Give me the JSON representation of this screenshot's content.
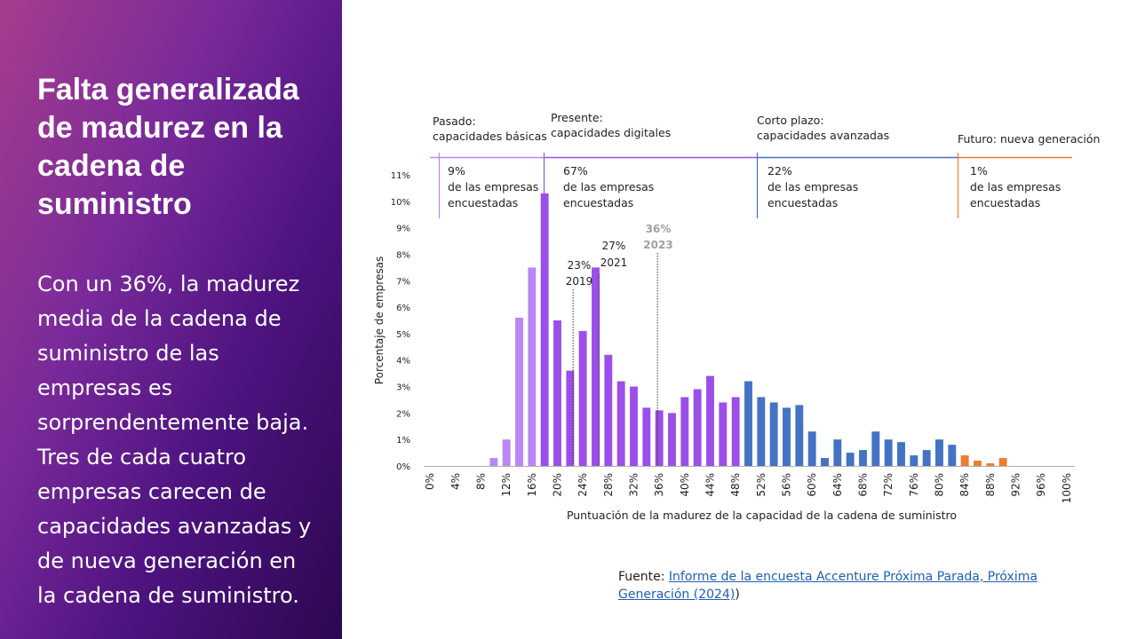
{
  "slide": {
    "title": "Falta generalizada de madurez en la cadena de suministro",
    "body": "Con un 36%, la madurez media de la cadena de suministro de las empresas es sorprendentemente baja. Tres de cada cuatro empresas carecen de capacidades avanzadas y de nueva generación en la cadena de suministro.",
    "source_prefix": "Fuente: ",
    "source_link": "Informe de la encuesta Accenture Próxima Parada, Próxima Generación (2024)",
    "source_suffix": ")"
  },
  "colors": {
    "panel_start": "#a63d8c",
    "panel_end": "#2c0850",
    "basic": "#bb86f5",
    "digital": "#9b4fe8",
    "advanced": "#4472c4",
    "next_gen": "#ed7d31",
    "link": "#1f5fb4"
  },
  "chart_data": {
    "type": "bar",
    "xlabel": "Puntuación de la madurez de la capacidad de la cadena de suministro",
    "ylabel": "Porcentaje de empresas",
    "ylim": [
      0,
      11
    ],
    "yticks": [
      "0%",
      "1%",
      "2%",
      "3%",
      "4%",
      "5%",
      "6%",
      "7%",
      "8%",
      "9%",
      "10%",
      "11%"
    ],
    "xticks": [
      "0%",
      "4%",
      "8%",
      "12%",
      "16%",
      "20%",
      "24%",
      "28%",
      "32%",
      "36%",
      "40%",
      "44%",
      "48%",
      "52%",
      "56%",
      "60%",
      "64%",
      "68%",
      "72%",
      "76%",
      "80%",
      "84%",
      "88%",
      "92%",
      "96%",
      "100%"
    ],
    "x": [
      0,
      2,
      4,
      6,
      8,
      10,
      12,
      14,
      16,
      18,
      20,
      22,
      24,
      26,
      28,
      30,
      32,
      34,
      36,
      38,
      40,
      42,
      44,
      46,
      48,
      50,
      52,
      54,
      56,
      58,
      60,
      62,
      64,
      66,
      68,
      70,
      72,
      74,
      76,
      78,
      80,
      82,
      84,
      86,
      88,
      90,
      92,
      94,
      96,
      98,
      100
    ],
    "values": [
      0,
      0,
      0,
      0,
      0,
      0.3,
      1.0,
      5.6,
      7.5,
      10.3,
      5.5,
      3.6,
      5.1,
      7.5,
      4.2,
      3.2,
      3.0,
      2.2,
      2.1,
      2.0,
      2.6,
      2.9,
      3.4,
      2.4,
      2.6,
      3.2,
      2.6,
      2.4,
      2.2,
      2.3,
      1.3,
      0.3,
      1.0,
      0.5,
      0.6,
      1.3,
      1.0,
      0.9,
      0.4,
      0.6,
      1.0,
      0.8,
      0.4,
      0.2,
      0.1,
      0.3,
      0,
      0,
      0,
      0,
      0
    ],
    "grid": false,
    "stages": [
      {
        "title_line1": "Pasado:",
        "title_line2": "capacidades básicas",
        "pct": "9%",
        "desc_line1": "de las empresas",
        "desc_line2": "encuestadas",
        "color": "#bb86f5"
      },
      {
        "title_line1": "Presente:",
        "title_line2": "capacidades digitales",
        "pct": "67%",
        "desc_line1": "de las empresas",
        "desc_line2": "encuestadas",
        "color": "#9b4fe8"
      },
      {
        "title_line1": "Corto plazo:",
        "title_line2": "capacidades avanzadas",
        "pct": "22%",
        "desc_line1": "de las empresas",
        "desc_line2": "encuestadas",
        "color": "#4472c4"
      },
      {
        "title_line1": "Futuro: nueva generación",
        "title_line2": "",
        "pct": "1%",
        "desc_line1": "de las empresas",
        "desc_line2": "encuestadas",
        "color": "#ed7d31"
      }
    ],
    "annotations": [
      {
        "value": "23%",
        "year": "2019",
        "x": 23
      },
      {
        "value": "27%",
        "year": "2021",
        "x": 27
      },
      {
        "value": "36%",
        "year": "2023",
        "x": 36
      }
    ]
  }
}
